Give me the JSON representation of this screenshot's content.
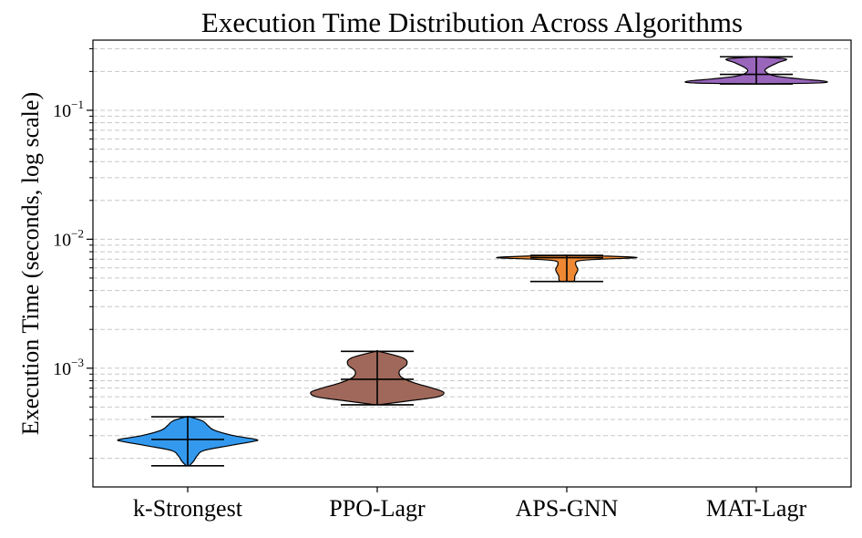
{
  "chart_data": {
    "type": "violin",
    "title": "Execution Time Distribution Across Algorithms",
    "xlabel": "",
    "ylabel": "Execution Time (seconds, log scale)",
    "yscale": "log",
    "ylim": [
      0.00012,
      0.35
    ],
    "grid": "y (major and minor, dashed)",
    "categories": [
      "k-Strongest",
      "PPO-Lagr",
      "APS-GNN",
      "MAT-Lagr"
    ],
    "yticks": [
      {
        "value": 0.001,
        "base": "10",
        "exp": "−3"
      },
      {
        "value": 0.01,
        "base": "10",
        "exp": "−2"
      },
      {
        "value": 0.1,
        "base": "10",
        "exp": "−1"
      }
    ],
    "series": [
      {
        "name": "k-Strongest",
        "color": "#3399ee",
        "min": 0.000175,
        "median": 0.00028,
        "max": 0.00042,
        "profile": [
          [
            0.000175,
            0.02
          ],
          [
            0.00019,
            0.08
          ],
          [
            0.00021,
            0.13
          ],
          [
            0.00023,
            0.22
          ],
          [
            0.00025,
            0.55
          ],
          [
            0.00027,
            0.88
          ],
          [
            0.00028,
            0.93
          ],
          [
            0.0003,
            0.62
          ],
          [
            0.00033,
            0.36
          ],
          [
            0.00036,
            0.27
          ],
          [
            0.00039,
            0.2
          ],
          [
            0.00042,
            0.02
          ]
        ]
      },
      {
        "name": "PPO-Lagr",
        "color": "#a0685a",
        "min": 0.00052,
        "median": 0.00082,
        "max": 0.00135,
        "profile": [
          [
            0.00052,
            0.02
          ],
          [
            0.00056,
            0.45
          ],
          [
            0.0006,
            0.82
          ],
          [
            0.00065,
            0.9
          ],
          [
            0.0007,
            0.75
          ],
          [
            0.00077,
            0.5
          ],
          [
            0.00085,
            0.33
          ],
          [
            0.00095,
            0.3
          ],
          [
            0.00107,
            0.4
          ],
          [
            0.0012,
            0.35
          ],
          [
            0.00135,
            0.02
          ]
        ]
      },
      {
        "name": "APS-GNN",
        "color": "#ee8833",
        "min": 0.0047,
        "median": 0.0072,
        "max": 0.0075,
        "profile": [
          [
            0.0047,
            0.02
          ],
          [
            0.00475,
            0.1
          ],
          [
            0.0052,
            0.11
          ],
          [
            0.0058,
            0.15
          ],
          [
            0.0064,
            0.12
          ],
          [
            0.0068,
            0.16
          ],
          [
            0.007,
            0.45
          ],
          [
            0.0072,
            0.95
          ],
          [
            0.0074,
            0.55
          ],
          [
            0.0075,
            0.02
          ]
        ]
      },
      {
        "name": "MAT-Lagr",
        "color": "#9966bb",
        "min": 0.16,
        "median": 0.19,
        "max": 0.26,
        "profile": [
          [
            0.16,
            0.02
          ],
          [
            0.163,
            0.85
          ],
          [
            0.168,
            0.93
          ],
          [
            0.175,
            0.6
          ],
          [
            0.185,
            0.25
          ],
          [
            0.2,
            0.12
          ],
          [
            0.215,
            0.16
          ],
          [
            0.235,
            0.3
          ],
          [
            0.25,
            0.4
          ],
          [
            0.26,
            0.02
          ]
        ]
      }
    ]
  }
}
